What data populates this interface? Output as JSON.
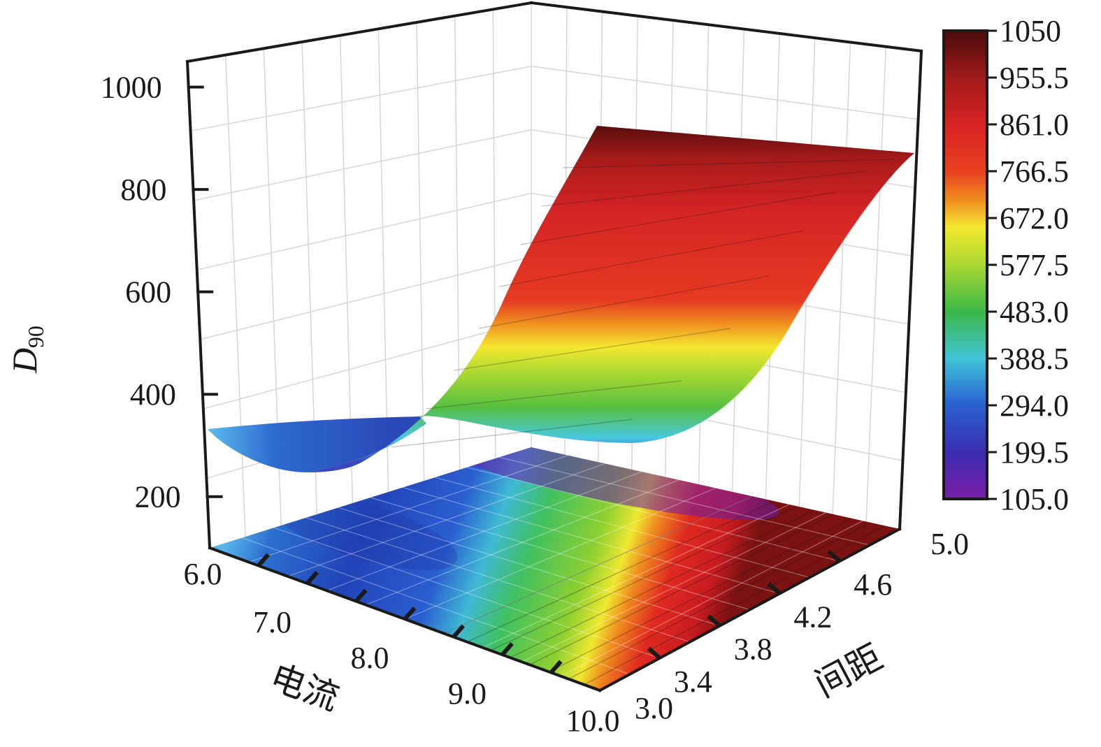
{
  "chart_data": {
    "type": "surface",
    "x_axis": {
      "label": "电流",
      "ticks": [
        "6.0",
        "7.0",
        "8.0",
        "9.0",
        "10.0"
      ],
      "range": [
        6.0,
        10.0
      ]
    },
    "y_axis": {
      "label": "间距",
      "ticks": [
        "3.0",
        "3.4",
        "3.8",
        "4.2",
        "4.6",
        "5.0"
      ],
      "range": [
        3.0,
        5.0
      ]
    },
    "z_axis": {
      "label": "D",
      "label_sub": "90",
      "ticks": [
        "200",
        "400",
        "600",
        "800",
        "1000"
      ],
      "range": [
        100,
        1050
      ]
    },
    "colorbar": {
      "ticks": [
        "1050",
        "955.5",
        "861.0",
        "766.5",
        "672.0",
        "577.5",
        "483.0",
        "388.5",
        "294.0",
        "199.5",
        "105.0"
      ],
      "range": [
        105.0,
        1050
      ]
    },
    "surface_samples": {
      "current": [
        6.0,
        7.0,
        8.0,
        9.0,
        10.0
      ],
      "spacing": [
        3.0,
        5.0
      ],
      "d90": [
        [
          330,
          330
        ],
        [
          245,
          245
        ],
        [
          300,
          300
        ],
        [
          540,
          540
        ],
        [
          920,
          860
        ]
      ]
    },
    "contour_projection": true,
    "grid": true
  }
}
